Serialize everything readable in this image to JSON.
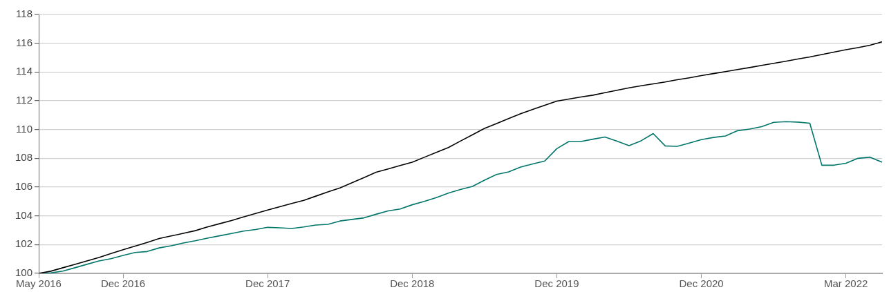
{
  "chart_data": {
    "type": "line",
    "categories": [
      "May 2016",
      null,
      null,
      null,
      null,
      null,
      null,
      "Dec 2016",
      null,
      null,
      null,
      null,
      null,
      null,
      null,
      null,
      null,
      null,
      null,
      "Dec 2017",
      null,
      null,
      null,
      null,
      null,
      null,
      null,
      null,
      null,
      null,
      null,
      "Dec 2018",
      null,
      null,
      null,
      null,
      null,
      null,
      null,
      null,
      null,
      null,
      null,
      "Dec 2019",
      null,
      null,
      null,
      null,
      null,
      null,
      null,
      null,
      null,
      null,
      null,
      "Dec 2020",
      null,
      null,
      null,
      null,
      null,
      null,
      null,
      null,
      null,
      null,
      null,
      "Mar 2022",
      null,
      null,
      null
    ],
    "series": [
      {
        "color": "#000000",
        "values": [
          100.0,
          100.15,
          100.39,
          100.62,
          100.86,
          101.1,
          101.38,
          101.64,
          101.9,
          102.15,
          102.42,
          102.6,
          102.78,
          102.97,
          103.23,
          103.45,
          103.67,
          103.92,
          104.16,
          104.4,
          104.63,
          104.86,
          105.08,
          105.37,
          105.66,
          105.94,
          106.3,
          106.66,
          107.03,
          107.26,
          107.5,
          107.73,
          108.07,
          108.41,
          108.75,
          109.2,
          109.64,
          110.08,
          110.42,
          110.76,
          111.1,
          111.4,
          111.69,
          111.98,
          112.12,
          112.26,
          112.39,
          112.56,
          112.73,
          112.9,
          113.04,
          113.18,
          113.31,
          113.46,
          113.6,
          113.75,
          113.89,
          114.03,
          114.17,
          114.31,
          114.46,
          114.6,
          114.75,
          114.9,
          115.05,
          115.22,
          115.38,
          115.55,
          115.7,
          115.86,
          116.1
        ]
      },
      {
        "color": "#00756a",
        "values": [
          100.0,
          100.03,
          100.16,
          100.39,
          100.63,
          100.86,
          101.02,
          101.25,
          101.45,
          101.52,
          101.77,
          101.92,
          102.11,
          102.27,
          102.45,
          102.61,
          102.77,
          102.94,
          103.05,
          103.2,
          103.17,
          103.12,
          103.23,
          103.36,
          103.41,
          103.64,
          103.75,
          103.86,
          104.11,
          104.34,
          104.48,
          104.77,
          105.0,
          105.27,
          105.58,
          105.83,
          106.05,
          106.48,
          106.88,
          107.06,
          107.39,
          107.61,
          107.81,
          108.67,
          109.17,
          109.17,
          109.33,
          109.48,
          109.19,
          108.88,
          109.22,
          109.72,
          108.86,
          108.83,
          109.06,
          109.3,
          109.45,
          109.55,
          109.92,
          110.03,
          110.2,
          110.5,
          110.55,
          110.52,
          110.44,
          107.52,
          107.52,
          107.66,
          108.0,
          108.08,
          107.73
        ]
      }
    ],
    "ylim": [
      100,
      118
    ],
    "yticks": [
      100,
      102,
      104,
      106,
      108,
      110,
      112,
      114,
      116,
      118
    ],
    "grid": "y",
    "legend": false,
    "marker": "none",
    "line_style": "solid"
  }
}
